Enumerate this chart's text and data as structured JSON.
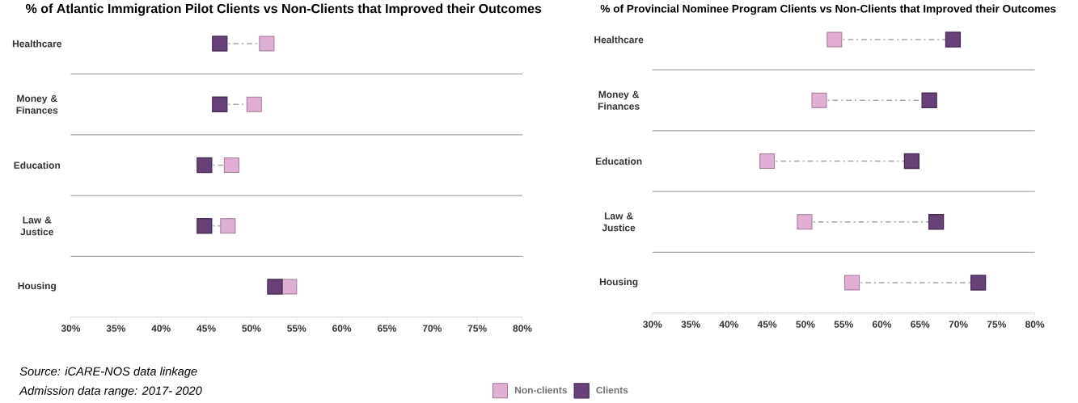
{
  "chart_data": [
    {
      "type": "scatter",
      "orientation": "horizontal",
      "title": "% of Atlantic Immigration Pilot Clients vs Non-Clients that Improved their Outcomes",
      "categories": [
        "Healthcare",
        "Money & Finances",
        "Education",
        "Law & Justice",
        "Housing"
      ],
      "series": [
        {
          "name": "Non-clients",
          "color": "#e1afd4",
          "values": [
            51.7,
            50.3,
            47.8,
            47.4,
            54.2
          ]
        },
        {
          "name": "Clients",
          "color": "#674278",
          "values": [
            46.5,
            46.5,
            44.8,
            44.8,
            52.6
          ]
        }
      ],
      "xlim": [
        30,
        80
      ],
      "xticks": [
        {
          "value": 30,
          "label": "30%"
        },
        {
          "value": 35,
          "label": "35%"
        },
        {
          "value": 40,
          "label": "40%"
        },
        {
          "value": 45,
          "label": "45%"
        },
        {
          "value": 50,
          "label": "50%"
        },
        {
          "value": 55,
          "label": "55%"
        },
        {
          "value": 60,
          "label": "60%"
        },
        {
          "value": 65,
          "label": "65%"
        },
        {
          "value": 70,
          "label": "70%"
        },
        {
          "value": 75,
          "label": "75%"
        },
        {
          "value": 80,
          "label": "80%"
        }
      ],
      "marker": "square",
      "legend": "bottom",
      "annotations": [
        "Source: iCARE-NOS data linkage",
        "Admission data range: 2017- 2020"
      ]
    },
    {
      "type": "scatter",
      "orientation": "horizontal",
      "title": "% of Provincial Nominee Program Clients vs Non-Clients that Improved their Outcomes",
      "categories": [
        "Healthcare",
        "Money & Finances",
        "Education",
        "Law & Justice",
        "Housing"
      ],
      "series": [
        {
          "color": "#e1afd4",
          "values": [
            53.8,
            51.8,
            45.0,
            49.9,
            56.1
          ]
        },
        {
          "color": "#674278",
          "values": [
            69.3,
            66.2,
            63.9,
            67.1,
            72.6
          ]
        }
      ],
      "xlim": [
        30,
        80
      ],
      "xticks": [
        {
          "value": 30,
          "label": "30%"
        },
        {
          "value": 35,
          "label": "35%"
        },
        {
          "value": 40,
          "label": "40%"
        },
        {
          "value": 45,
          "label": "45%"
        },
        {
          "value": 50,
          "label": "50%"
        },
        {
          "value": 55,
          "label": "55%"
        },
        {
          "value": 60,
          "label": "60%"
        },
        {
          "value": 65,
          "label": "65%"
        },
        {
          "value": 70,
          "label": "70%"
        },
        {
          "value": 75,
          "label": "75%"
        },
        {
          "value": 80,
          "label": "80%"
        }
      ],
      "marker": "square"
    }
  ]
}
